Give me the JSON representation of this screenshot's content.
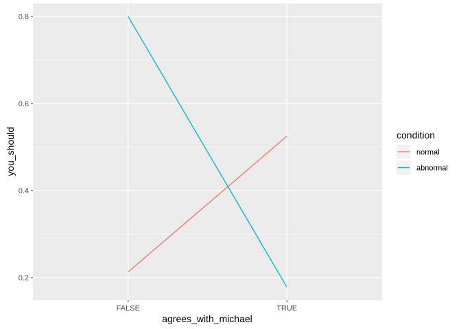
{
  "chart_data": {
    "type": "line",
    "categories": [
      "FALSE",
      "TRUE"
    ],
    "series": [
      {
        "name": "normal",
        "values": [
          0.213,
          0.525
        ],
        "color": "#F8766D"
      },
      {
        "name": "abnormal",
        "values": [
          0.8,
          0.178
        ],
        "color": "#00BFC4"
      }
    ],
    "xlabel": "agrees_with_michael",
    "ylabel": "you_should",
    "ylim": [
      0.148,
      0.83
    ],
    "yticks": [
      0.2,
      0.4,
      0.6,
      0.8
    ],
    "ytick_labels": [
      "0.2",
      "0.4",
      "0.6",
      "0.8"
    ],
    "grid": true,
    "panel_background": "#EBEBEB",
    "legend": {
      "title": "condition",
      "placement": "right"
    }
  }
}
